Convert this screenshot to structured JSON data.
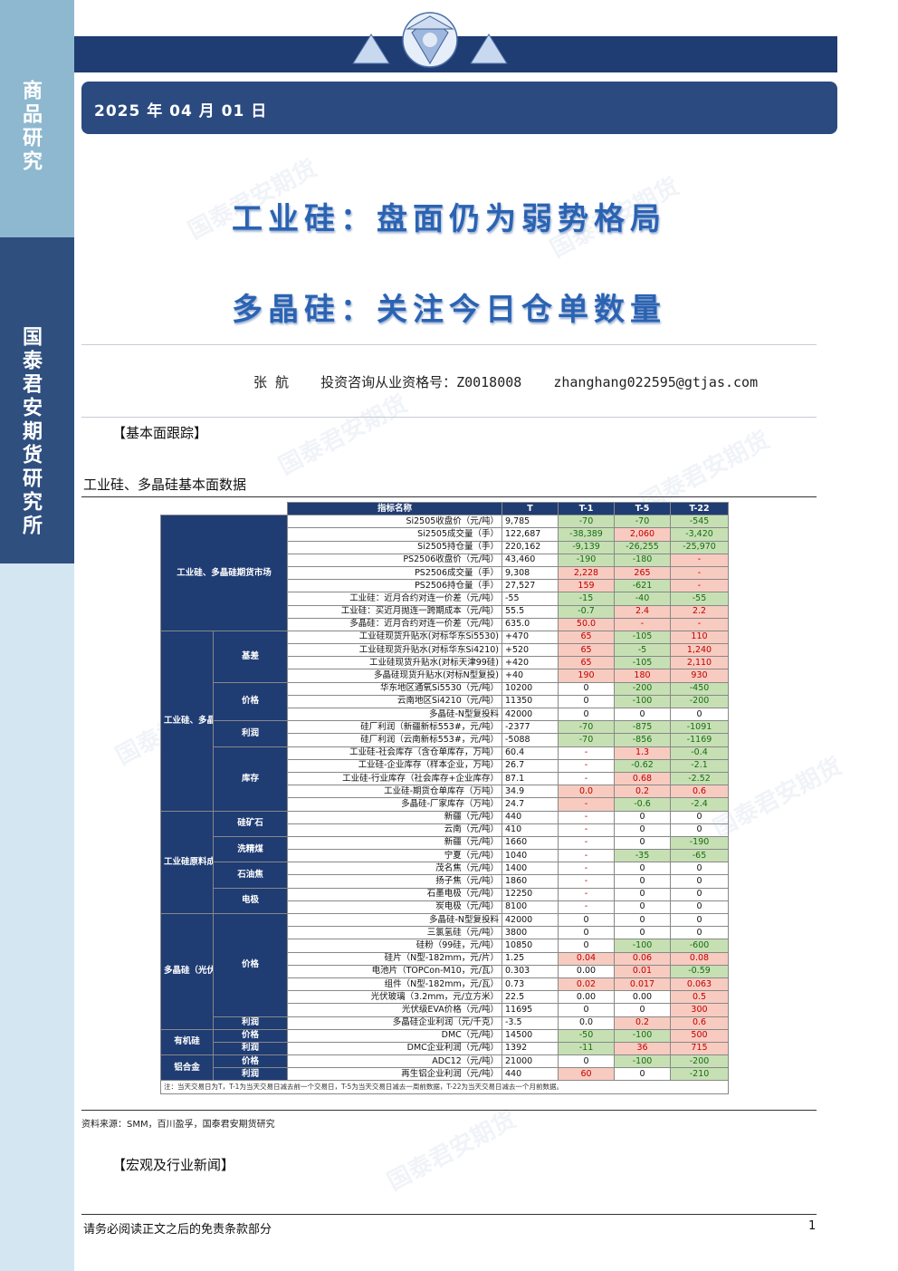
{
  "sidebar": {
    "top_label": "商品研究",
    "mid_label": "国泰君安期货研究所"
  },
  "header": {
    "date": "2025 年 04 月 01 日"
  },
  "titles": {
    "line1": "工业硅：盘面仍为弱势格局",
    "line2": "多晶硅：关注今日仓单数量"
  },
  "author": {
    "name": "张  航",
    "license": "投资咨询从业资格号：Z0018008",
    "email": "zhanghang022595@gtjas.com"
  },
  "sections": {
    "fundamentals": "【基本面跟踪】",
    "news": "【宏观及行业新闻】"
  },
  "table_caption": "工业硅、多晶硅基本面数据",
  "watermark": "国泰君安期货",
  "table": {
    "headers": [
      "指标名称",
      "T",
      "T-1",
      "T-5",
      "T-22"
    ],
    "groups": {
      "futures": "工业硅、多晶硅期货市场",
      "spot": "工业硅、多晶硅",
      "basis": "基差",
      "price": "价格",
      "profit": "利润",
      "inventory": "库存",
      "cost": "工业硅原料成本",
      "silica": "硅矿石",
      "coal": "洗精煤",
      "coke": "石油焦",
      "electrode": "电极",
      "poly": "多晶硅（光伏）",
      "poly_price": "价格",
      "poly_profit": "利润",
      "organic": "有机硅",
      "org_price": "价格",
      "org_profit": "利润",
      "alloy": "铝合金",
      "al_price": "价格",
      "al_profit": "利润"
    },
    "rows": [
      [
        "Si2505收盘价（元/吨）",
        "9,785",
        "-70",
        "-70",
        "-545"
      ],
      [
        "Si2505成交量（手）",
        "122,687",
        "-38,389",
        "2,060",
        "-3,420"
      ],
      [
        "Si2505持仓量（手）",
        "220,162",
        "-9,139",
        "-26,255",
        "-25,970"
      ],
      [
        "PS2506收盘价（元/吨）",
        "43,460",
        "-190",
        "-180",
        "-"
      ],
      [
        "PS2506成交量（手）",
        "9,308",
        "2,228",
        "265",
        "-"
      ],
      [
        "PS2506持仓量（手）",
        "27,527",
        "159",
        "-621",
        "-"
      ],
      [
        "工业硅：近月合约对连一价差（元/吨）",
        "-55",
        "-15",
        "-40",
        "-55"
      ],
      [
        "工业硅：买近月抛连一跨期成本（元/吨）",
        "55.5",
        "-0.7",
        "2.4",
        "2.2"
      ],
      [
        "多晶硅：近月合约对连一价差（元/吨）",
        "635.0",
        "50.0",
        "-",
        "-"
      ],
      [
        "工业硅现货升贴水(对标华东Si5530)",
        "+470",
        "65",
        "-105",
        "110"
      ],
      [
        "工业硅现货升贴水(对标华东Si4210)",
        "+520",
        "65",
        "-5",
        "1,240"
      ],
      [
        "工业硅现货升贴水(对标天津99硅)",
        "+420",
        "65",
        "-105",
        "2,110"
      ],
      [
        "多晶硅现货升贴水(对标N型复投)",
        "+40",
        "190",
        "180",
        "930"
      ],
      [
        "华东地区通氧Si5530（元/吨）",
        "10200",
        "0",
        "-200",
        "-450"
      ],
      [
        "云南地区Si4210（元/吨）",
        "11350",
        "0",
        "-100",
        "-200"
      ],
      [
        "多晶硅-N型复投料",
        "42000",
        "0",
        "0",
        "0"
      ],
      [
        "硅厂利润（新疆新标553#，元/吨）",
        "-2377",
        "-70",
        "-875",
        "-1091"
      ],
      [
        "硅厂利润（云南新标553#，元/吨）",
        "-5088",
        "-70",
        "-856",
        "-1169"
      ],
      [
        "工业硅-社会库存（含仓单库存，万吨）",
        "60.4",
        "-",
        "1.3",
        "-0.4"
      ],
      [
        "工业硅-企业库存（样本企业，万吨）",
        "26.7",
        "-",
        "-0.62",
        "-2.1"
      ],
      [
        "工业硅-行业库存（社会库存+企业库存）",
        "87.1",
        "-",
        "0.68",
        "-2.52"
      ],
      [
        "工业硅-期货仓单库存（万吨）",
        "34.9",
        "0.0",
        "0.2",
        "0.6"
      ],
      [
        "多晶硅-厂家库存（万吨）",
        "24.7",
        "-",
        "-0.6",
        "-2.4"
      ],
      [
        "新疆（元/吨）",
        "440",
        "-",
        "0",
        "0"
      ],
      [
        "云南（元/吨）",
        "410",
        "-",
        "0",
        "0"
      ],
      [
        "新疆（元/吨）",
        "1660",
        "-",
        "0",
        "-190"
      ],
      [
        "宁夏（元/吨）",
        "1040",
        "-",
        "-35",
        "-65"
      ],
      [
        "茂名焦（元/吨）",
        "1400",
        "-",
        "0",
        "0"
      ],
      [
        "扬子焦（元/吨）",
        "1860",
        "-",
        "0",
        "0"
      ],
      [
        "石墨电极（元/吨）",
        "12250",
        "-",
        "0",
        "0"
      ],
      [
        "炭电极（元/吨）",
        "8100",
        "-",
        "0",
        "0"
      ],
      [
        "多晶硅-N型复投料",
        "42000",
        "0",
        "0",
        "0"
      ],
      [
        "三氯氢硅（元/吨）",
        "3800",
        "0",
        "0",
        "0"
      ],
      [
        "硅粉（99硅，元/吨）",
        "10850",
        "0",
        "-100",
        "-600"
      ],
      [
        "硅片（N型-182mm，元/片）",
        "1.25",
        "0.04",
        "0.06",
        "0.08"
      ],
      [
        "电池片（TOPCon-M10，元/瓦）",
        "0.303",
        "0.00",
        "0.01",
        "-0.59"
      ],
      [
        "组件（N型-182mm，元/瓦）",
        "0.73",
        "0.02",
        "0.017",
        "0.063"
      ],
      [
        "光伏玻璃（3.2mm，元/立方米）",
        "22.5",
        "0.00",
        "0.00",
        "0.5"
      ],
      [
        "光伏级EVA价格（元/吨）",
        "11695",
        "0",
        "0",
        "300"
      ],
      [
        "多晶硅企业利润（元/千克）",
        "-3.5",
        "0.0",
        "0.2",
        "0.6"
      ],
      [
        "DMC（元/吨）",
        "14500",
        "-50",
        "-100",
        "500"
      ],
      [
        "DMC企业利润（元/吨）",
        "1392",
        "-11",
        "36",
        "715"
      ],
      [
        "ADC12（元/吨）",
        "21000",
        "0",
        "-100",
        "-200"
      ],
      [
        "再生铝企业利润（元/吨）",
        "440",
        "60",
        "0",
        "-210"
      ]
    ],
    "note": "注：当天交易日为T，T-1为当天交易日减去前一个交易日，T-5为当天交易日减去一周前数据，T-22为当天交易日减去一个月前数据。"
  },
  "source": "资料来源：SMM，百川盈孚，国泰君安期货研究",
  "footer": {
    "disclaimer": "请务必阅读正文之后的免责条款部分",
    "page": "1"
  },
  "colors": {
    "navy": "#1f3c73",
    "title_blue": "#2b63b3",
    "pos_bg": "#f8cbc0",
    "neg_bg": "#c6e0b4"
  }
}
